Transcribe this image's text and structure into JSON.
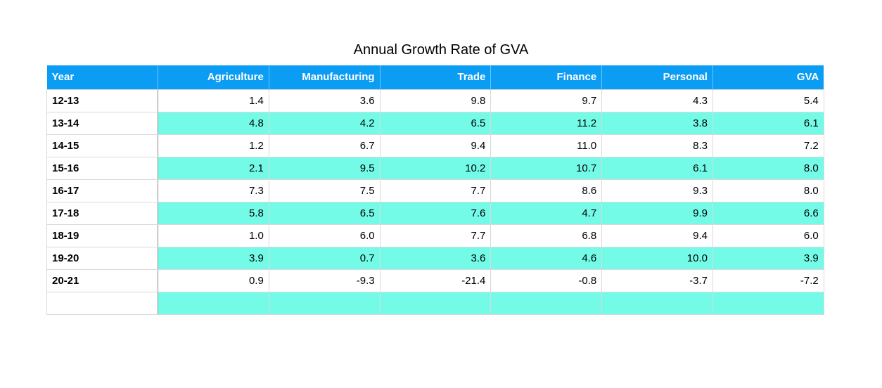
{
  "chart_data": {
    "type": "table",
    "title": "Annual Growth Rate of GVA",
    "header_colors": {
      "header_bg": "#0b9cf4",
      "band_bg": "#74fbe8"
    },
    "columns": [
      "Year",
      "Agriculture",
      "Manufacturing",
      "Trade",
      "Finance",
      "Personal",
      "GVA"
    ],
    "rows": [
      [
        "12-13",
        "1.4",
        "3.6",
        "9.8",
        "9.7",
        "4.3",
        "5.4"
      ],
      [
        "13-14",
        "4.8",
        "4.2",
        "6.5",
        "11.2",
        "3.8",
        "6.1"
      ],
      [
        "14-15",
        "1.2",
        "6.7",
        "9.4",
        "11.0",
        "8.3",
        "7.2"
      ],
      [
        "15-16",
        "2.1",
        "9.5",
        "10.2",
        "10.7",
        "6.1",
        "8.0"
      ],
      [
        "16-17",
        "7.3",
        "7.5",
        "7.7",
        "8.6",
        "9.3",
        "8.0"
      ],
      [
        "17-18",
        "5.8",
        "6.5",
        "7.6",
        "4.7",
        "9.9",
        "6.6"
      ],
      [
        "18-19",
        "1.0",
        "6.0",
        "7.7",
        "6.8",
        "9.4",
        "6.0"
      ],
      [
        "19-20",
        "3.9",
        "0.7",
        "3.6",
        "4.6",
        "10.0",
        "3.9"
      ],
      [
        "20-21",
        "0.9",
        "-9.3",
        "-21.4",
        "-0.8",
        "-3.7",
        "-7.2"
      ],
      [
        "",
        "",
        "",
        "",
        "",
        "",
        ""
      ]
    ]
  }
}
